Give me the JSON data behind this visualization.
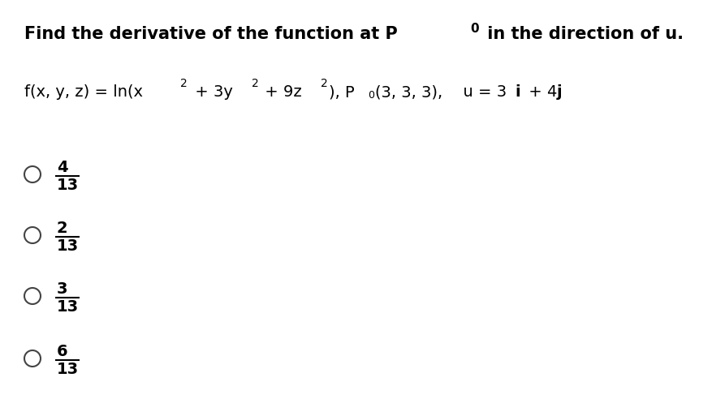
{
  "background_color": "#ffffff",
  "text_color": "#000000",
  "figsize": [
    8.78,
    4.92
  ],
  "dpi": 100,
  "title_fontsize": 15,
  "body_fontsize": 14,
  "options": [
    {
      "numerator": "4",
      "denominator": "13"
    },
    {
      "numerator": "2",
      "denominator": "13"
    },
    {
      "numerator": "3",
      "denominator": "13"
    },
    {
      "numerator": "6",
      "denominator": "13"
    }
  ]
}
